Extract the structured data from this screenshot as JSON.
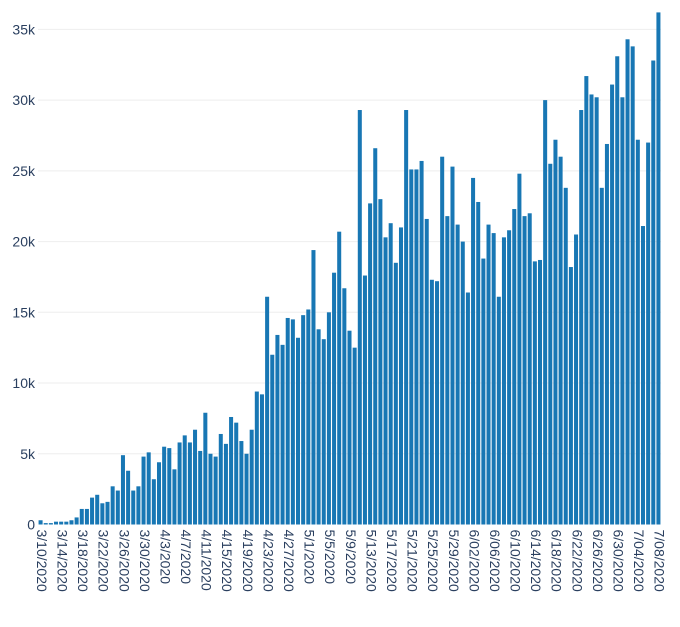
{
  "chart_data": {
    "type": "bar",
    "title": "",
    "xlabel": "",
    "ylabel": "",
    "bar_color": "#1877b4",
    "grid": "horizontal",
    "ylim": [
      0,
      36300
    ],
    "y_ticks": [
      0,
      5000,
      10000,
      15000,
      20000,
      25000,
      30000,
      35000
    ],
    "y_tick_labels": [
      "0",
      "5k",
      "10k",
      "15k",
      "20k",
      "25k",
      "30k",
      "35k"
    ],
    "x_tick_labels": [
      "3/10/2020",
      "3/14/2020",
      "3/18/2020",
      "3/22/2020",
      "3/26/2020",
      "3/30/2020",
      "4/3/2020",
      "4/7/2020",
      "4/11/2020",
      "4/15/2020",
      "4/19/2020",
      "4/23/2020",
      "4/27/2020",
      "5/1/2020",
      "5/5/2020",
      "5/9/2020",
      "5/13/2020",
      "5/17/2020",
      "5/21/2020",
      "5/25/2020",
      "5/29/2020",
      "6/02/2020",
      "6/06/2020",
      "6/10/2020",
      "6/14/2020",
      "6/18/2020",
      "6/22/2020",
      "6/26/2020",
      "6/30/2020",
      "7/04/2020",
      "7/08/2020"
    ],
    "x_tick_every": 4,
    "values": [
      300,
      100,
      100,
      200,
      200,
      200,
      300,
      500,
      1100,
      1100,
      1900,
      2100,
      1500,
      1600,
      2700,
      2400,
      4900,
      3800,
      2400,
      2700,
      4800,
      5100,
      3200,
      4400,
      5500,
      5400,
      3900,
      5800,
      6300,
      5800,
      6700,
      5200,
      7900,
      5000,
      4800,
      6400,
      5700,
      7600,
      7200,
      5900,
      5000,
      6700,
      9400,
      9200,
      16100,
      12000,
      13400,
      12700,
      14600,
      14500,
      13200,
      14800,
      15200,
      19400,
      13800,
      13100,
      15000,
      17800,
      20700,
      16700,
      13700,
      12500,
      29300,
      17600,
      22700,
      26600,
      23000,
      20300,
      21300,
      18500,
      21000,
      29300,
      25100,
      25100,
      25700,
      21600,
      17300,
      17200,
      26000,
      21800,
      25300,
      21200,
      20000,
      16400,
      24500,
      22800,
      18800,
      21200,
      20600,
      16100,
      20300,
      20800,
      22300,
      24800,
      21800,
      22000,
      18600,
      18700,
      30000,
      25500,
      27200,
      26000,
      23800,
      18200,
      20500,
      29300,
      31700,
      30400,
      30200,
      23800,
      26900,
      31100,
      33100,
      30200,
      34300,
      33800,
      27200,
      21100,
      27000,
      32800,
      36200
    ]
  }
}
